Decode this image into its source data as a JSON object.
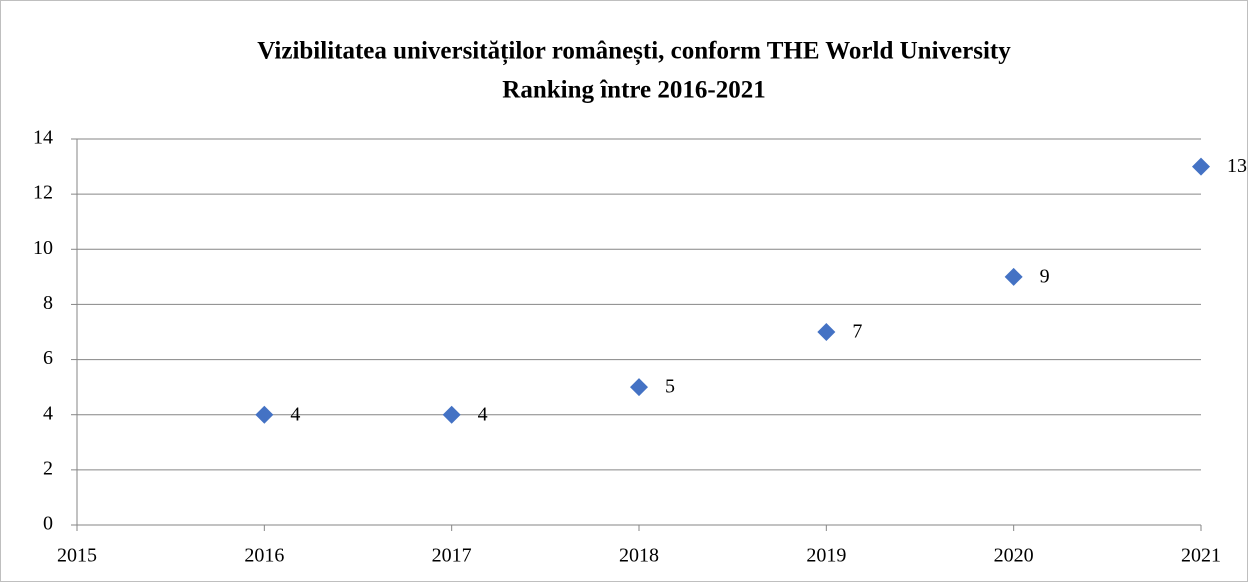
{
  "chart_data": {
    "type": "scatter",
    "title": [
      "Vizibilitatea universităților românești, conform THE World University",
      "Ranking între 2016-2021"
    ],
    "x": [
      2016,
      2017,
      2018,
      2019,
      2020,
      2021
    ],
    "values": [
      4,
      4,
      5,
      7,
      9,
      13
    ],
    "color": "#4472c4",
    "xlim": [
      2015,
      2021
    ],
    "xticks": [
      2015,
      2016,
      2017,
      2018,
      2019,
      2020,
      2021
    ],
    "ylim": [
      0,
      14
    ],
    "yticks": [
      0,
      2,
      4,
      6,
      8,
      10,
      12,
      14
    ],
    "grid": true,
    "data_labels": true
  }
}
